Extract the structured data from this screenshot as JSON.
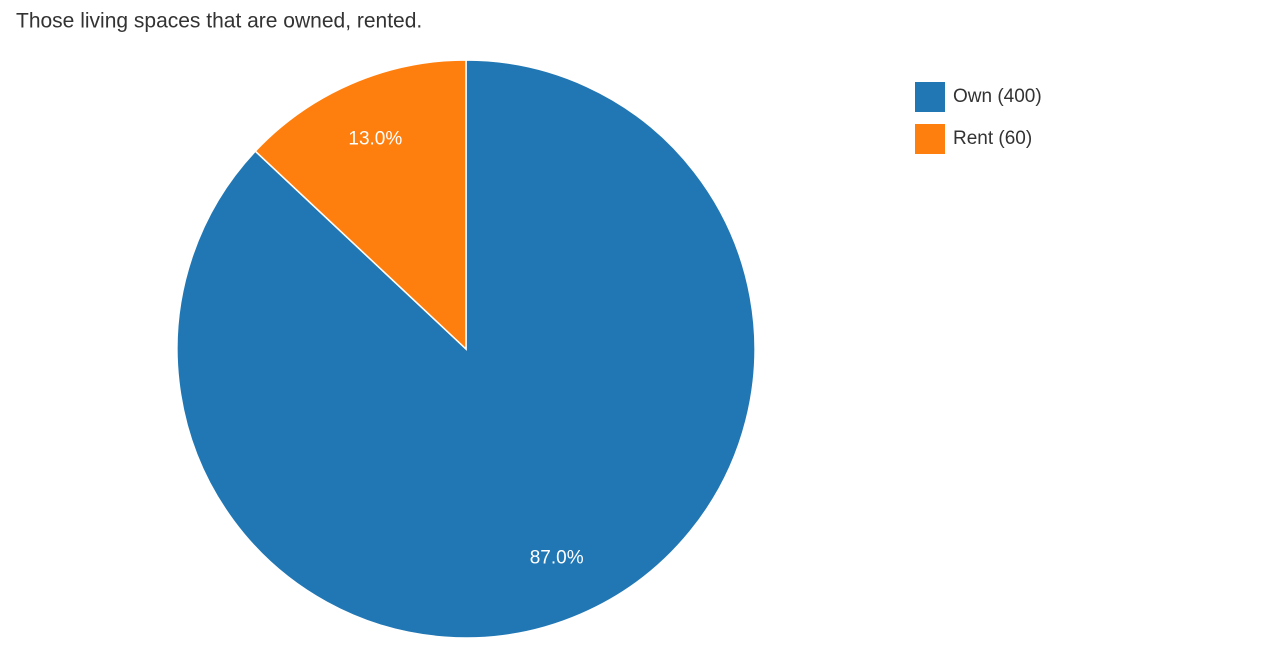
{
  "chart_data": {
    "type": "pie",
    "title": "Those living spaces that are owned, rented.",
    "categories": [
      "Own (400)",
      "Rent (60)"
    ],
    "values": [
      87.0,
      13.0
    ],
    "value_labels": [
      "87.0%",
      "13.0%"
    ],
    "colors": [
      "#2077b4",
      "#ff7f0e"
    ],
    "legend": "right"
  }
}
